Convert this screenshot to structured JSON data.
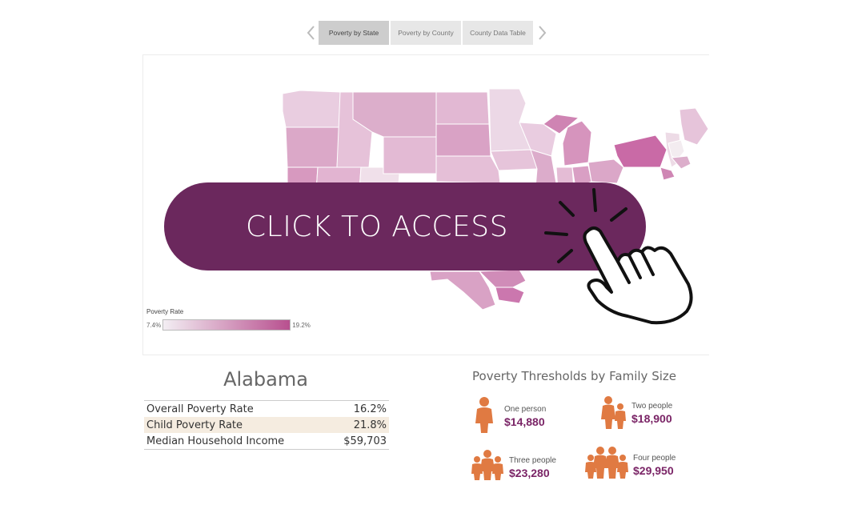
{
  "tabs": [
    {
      "label": "Poverty by State",
      "active": true
    },
    {
      "label": "Poverty by County",
      "active": false
    },
    {
      "label": "County Data Table",
      "active": false
    }
  ],
  "legend": {
    "title": "Poverty Rate",
    "min": "7.4%",
    "max": "19.2%",
    "color_low": "#f3eef3",
    "color_high": "#b8508f"
  },
  "cta": {
    "label": "CLICK TO ACCESS",
    "color": "#6b285d"
  },
  "state": {
    "name": "Alabama",
    "stats": [
      {
        "label": "Overall Poverty Rate",
        "value": "16.2%"
      },
      {
        "label": "Child Poverty Rate",
        "value": "21.8%"
      },
      {
        "label": "Median Household Income",
        "value": "$59,703"
      }
    ]
  },
  "thresholds": {
    "title": "Poverty Thresholds by Family Size",
    "items": [
      {
        "label": "One person",
        "value": "$14,880"
      },
      {
        "label": "Two people",
        "value": "$18,900"
      },
      {
        "label": "Three people",
        "value": "$23,280"
      },
      {
        "label": "Four people",
        "value": "$29,950"
      }
    ],
    "icon_color": "#e07a42",
    "value_color": "#7a2466"
  }
}
